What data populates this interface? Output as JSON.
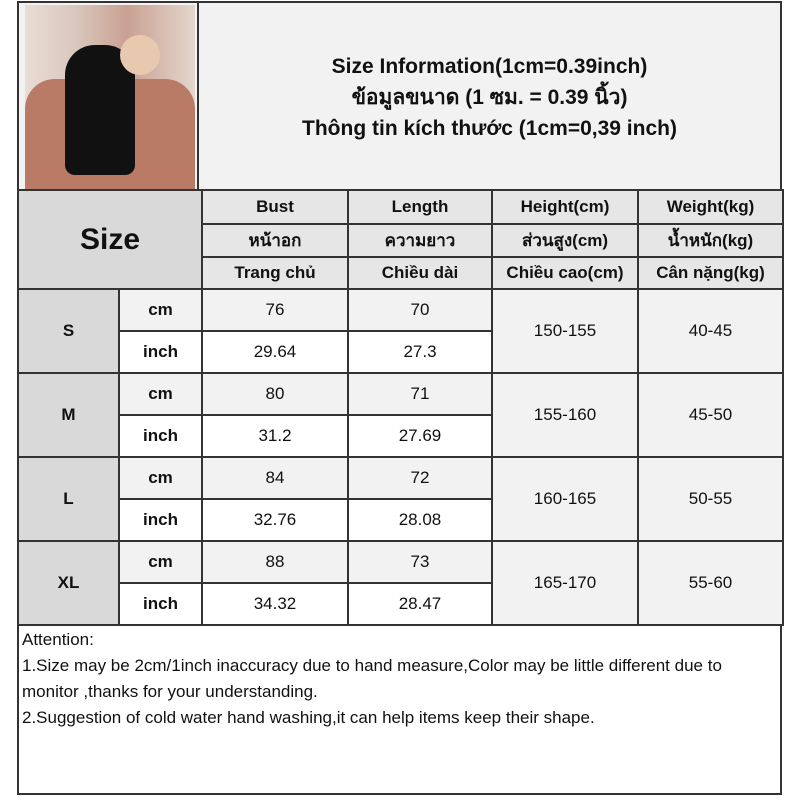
{
  "header": {
    "title_en": "Size Information(1cm=0.39inch)",
    "title_th": "ข้อมูลขนาด (1 ซม. = 0.39 นิ้ว)",
    "title_vi": "Thông tin kích thước (1cm=0,39 inch)"
  },
  "table": {
    "size_label": "Size",
    "columns": [
      {
        "en": "Bust",
        "th": "หน้าอก",
        "vi": "Trang chủ"
      },
      {
        "en": "Length",
        "th": "ความยาว",
        "vi": "Chiều dài"
      },
      {
        "en": "Height(cm)",
        "th": "ส่วนสูง(cm)",
        "vi": "Chiều cao(cm)"
      },
      {
        "en": "Weight(kg)",
        "th": "น้ำหนัก(kg)",
        "vi": "Cân nặng(kg)"
      }
    ],
    "unit_cm": "cm",
    "unit_inch": "inch",
    "rows": [
      {
        "size": "S",
        "bust_cm": "76",
        "length_cm": "70",
        "bust_inch": "29.64",
        "length_inch": "27.3",
        "height": "150-155",
        "weight": "40-45"
      },
      {
        "size": "M",
        "bust_cm": "80",
        "length_cm": "71",
        "bust_inch": "31.2",
        "length_inch": "27.69",
        "height": "155-160",
        "weight": "45-50"
      },
      {
        "size": "L",
        "bust_cm": "84",
        "length_cm": "72",
        "bust_inch": "32.76",
        "length_inch": "28.08",
        "height": "160-165",
        "weight": "50-55"
      },
      {
        "size": "XL",
        "bust_cm": "88",
        "length_cm": "73",
        "bust_inch": "34.32",
        "length_inch": "28.47",
        "height": "165-170",
        "weight": "55-60"
      }
    ]
  },
  "attention": {
    "heading": "Attention:",
    "line1": "1.Size may be 2cm/1inch inaccuracy due to hand measure,Color may be little different due to monitor ,thanks for your understanding.",
    "line2": "2.Suggestion of cold water hand washing,it can help items keep their shape."
  }
}
